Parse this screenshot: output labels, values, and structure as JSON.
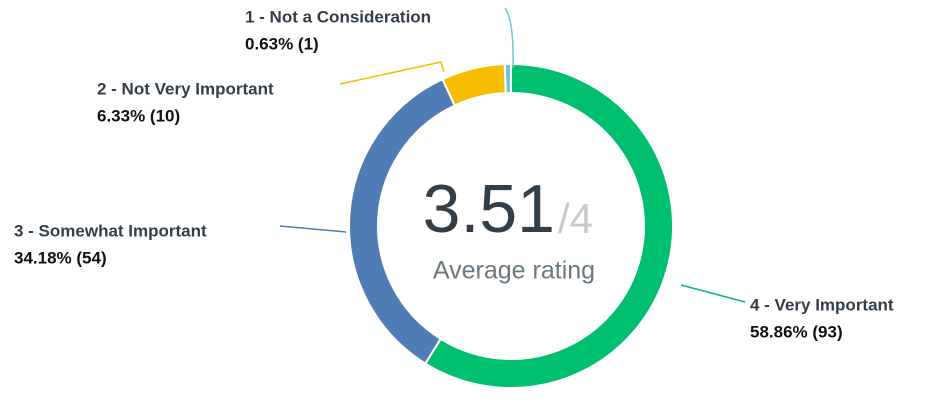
{
  "chart_data": {
    "type": "donut",
    "categories": [
      "1 - Not a Consideration",
      "2 - Not Very Important",
      "3 - Somewhat Important",
      "4 - Very Important"
    ],
    "values": [
      0.63,
      6.33,
      34.18,
      58.86
    ],
    "counts": [
      1,
      10,
      54,
      93
    ],
    "value_labels": [
      "0.63% (1)",
      "6.33% (10)",
      "34.18% (54)",
      "58.86% (93)"
    ],
    "colors": [
      "#6fc8cc",
      "#f7be00",
      "#507cb6",
      "#00bf6f"
    ],
    "center_value": "3.51",
    "center_suffix": "/4",
    "center_label": "Average rating"
  }
}
